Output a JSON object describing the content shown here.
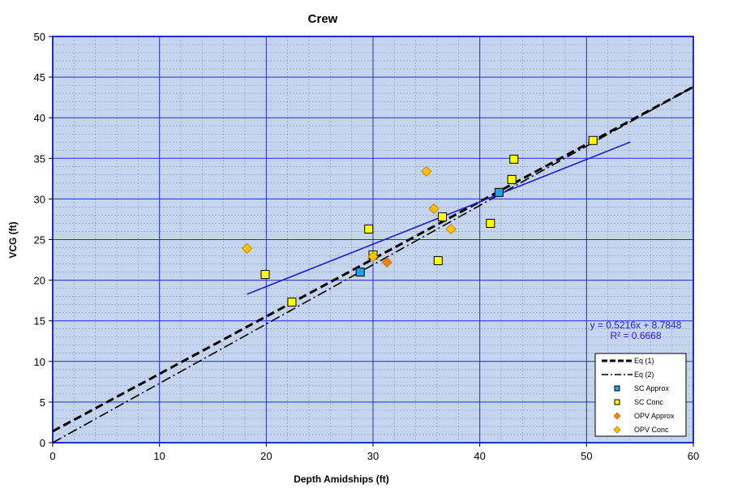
{
  "chart_data": {
    "type": "scatter",
    "title": "Crew",
    "xlabel": "Depth Amidships  (ft)",
    "ylabel": "VCG  (ft)",
    "xlim": [
      0,
      60
    ],
    "ylim": [
      0,
      50
    ],
    "x_ticks": [
      0,
      10,
      20,
      30,
      40,
      50,
      60
    ],
    "y_ticks": [
      0,
      5,
      10,
      15,
      20,
      25,
      30,
      35,
      40,
      45,
      50
    ],
    "grid": true,
    "plot_background": "#c5d5ee",
    "major_grid_color": "#1f2bd6",
    "minor_grid_color": "#8a94a8",
    "legend_position": "bottom-right",
    "series": [
      {
        "name": "Eq (1)",
        "kind": "line",
        "style": "dashed",
        "color": "#000000",
        "x": [
          0,
          60
        ],
        "y": [
          1.4,
          43.8
        ]
      },
      {
        "name": "Eq (2)",
        "kind": "line",
        "style": "dash-dot",
        "color": "#000000",
        "x": [
          0,
          60
        ],
        "y": [
          0,
          43.8
        ]
      },
      {
        "name": "SC Approx",
        "kind": "scatter",
        "marker": "square",
        "color": "#1ea3f0",
        "x": [
          28.8,
          41.8
        ],
        "y": [
          21.0,
          30.8
        ]
      },
      {
        "name": "SC Conc",
        "kind": "scatter",
        "marker": "square",
        "color": "#ffff00",
        "x": [
          19.9,
          22.4,
          29.6,
          30.0,
          36.1,
          36.5,
          41.0,
          43.0,
          43.2,
          50.6
        ],
        "y": [
          20.7,
          17.3,
          26.3,
          23.1,
          22.4,
          27.8,
          27.0,
          32.4,
          34.9,
          37.2
        ]
      },
      {
        "name": "OPV Approx",
        "kind": "scatter",
        "marker": "diamond",
        "color": "#ff7a1a",
        "x": [
          31.3
        ],
        "y": [
          22.2
        ]
      },
      {
        "name": "OPV Conc",
        "kind": "scatter",
        "marker": "diamond",
        "color": "#ffc000",
        "x": [
          18.2,
          30.0,
          35.0,
          35.7,
          37.3
        ],
        "y": [
          23.9,
          22.9,
          33.4,
          28.8,
          26.3
        ]
      }
    ],
    "trendline": {
      "color": "#1f1fd0",
      "x": [
        18.2,
        54.1
      ],
      "slope": 0.5216,
      "intercept": 8.7848,
      "equation": "y = 0.5216x + 8.7848",
      "r_squared": "R² = 0.6668"
    }
  }
}
